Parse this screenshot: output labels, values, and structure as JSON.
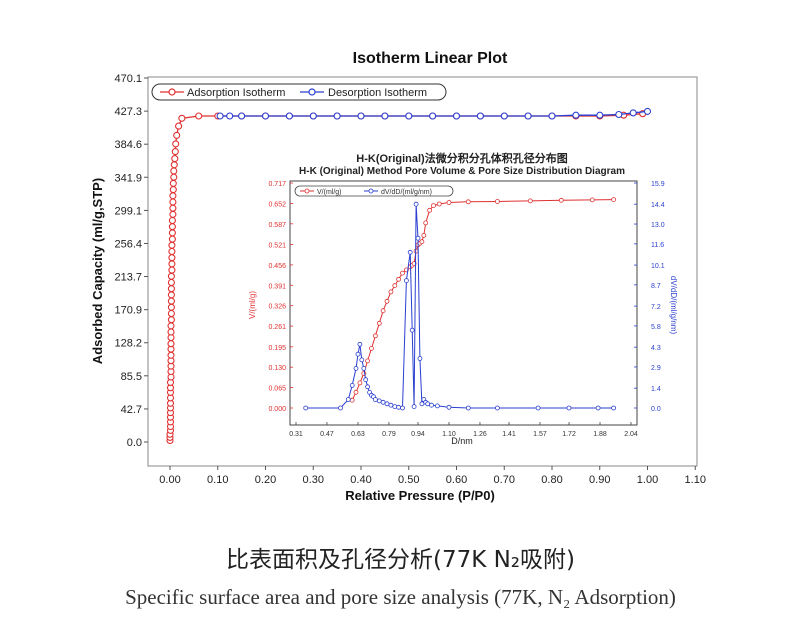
{
  "chart_data": [
    {
      "type": "line",
      "title": "Isotherm Linear Plot",
      "xlabel": "Relative Pressure (P/P0)",
      "ylabel": "Adsorbed Capacity (ml/g,STP)",
      "xlim": [
        -0.05,
        1.1
      ],
      "ylim": [
        0.0,
        470.1
      ],
      "xticks": [
        0.0,
        0.1,
        0.2,
        0.3,
        0.4,
        0.5,
        0.6,
        0.7,
        0.8,
        0.9,
        1.0,
        1.1
      ],
      "xtick_labels": [
        "0.00",
        "0.10",
        "0.20",
        "0.30",
        "0.40",
        "0.50",
        "0.60",
        "0.70",
        "0.80",
        "0.90",
        "1.00",
        "1.10"
      ],
      "yticks": [
        0.0,
        42.7,
        85.5,
        128.2,
        170.9,
        213.7,
        256.4,
        299.1,
        341.9,
        384.6,
        427.3,
        470.1
      ],
      "ytick_labels": [
        "0.0",
        "42.7",
        "85.5",
        "128.2",
        "170.9",
        "213.7",
        "256.4",
        "299.1",
        "341.9",
        "384.6",
        "427.3",
        "470.1"
      ],
      "grid": false,
      "legend_position": "top-left",
      "series": [
        {
          "name": "Adsorption Isotherm",
          "color": "#e03030",
          "x": [
            0.0,
            0.0,
            0.0,
            0.001,
            0.001,
            0.001,
            0.001,
            0.001,
            0.001,
            0.001,
            0.001,
            0.001,
            0.001,
            0.001,
            0.002,
            0.002,
            0.002,
            0.002,
            0.002,
            0.002,
            0.002,
            0.002,
            0.002,
            0.002,
            0.003,
            0.003,
            0.003,
            0.003,
            0.003,
            0.003,
            0.003,
            0.003,
            0.004,
            0.004,
            0.004,
            0.004,
            0.004,
            0.005,
            0.005,
            0.005,
            0.005,
            0.006,
            0.006,
            0.006,
            0.006,
            0.007,
            0.007,
            0.008,
            0.008,
            0.009,
            0.01,
            0.011,
            0.012,
            0.014,
            0.018,
            0.025,
            0.06,
            0.1,
            0.15,
            0.2,
            0.25,
            0.3,
            0.35,
            0.4,
            0.45,
            0.5,
            0.55,
            0.6,
            0.65,
            0.7,
            0.75,
            0.8,
            0.85,
            0.9,
            0.95,
            0.99
          ],
          "y": [
            2,
            6,
            10,
            15,
            20,
            26,
            32,
            38,
            44,
            50,
            57,
            64,
            70,
            77,
            84,
            91,
            98,
            105,
            112,
            120,
            127,
            135,
            142,
            150,
            158,
            166,
            174,
            182,
            190,
            198,
            206,
            214,
            222,
            230,
            238,
            246,
            254,
            262,
            270,
            278,
            286,
            294,
            302,
            310,
            318,
            326,
            334,
            342,
            350,
            358,
            366,
            375,
            385,
            396,
            408,
            418,
            421,
            421,
            421,
            421,
            421,
            421,
            421,
            421,
            421,
            421,
            421,
            421,
            421,
            421,
            421,
            421,
            421,
            421,
            422,
            424
          ]
        },
        {
          "name": "Desorption Isotherm",
          "color": "#2a3fd0",
          "x": [
            1.0,
            0.97,
            0.94,
            0.9,
            0.85,
            0.8,
            0.75,
            0.7,
            0.65,
            0.6,
            0.55,
            0.5,
            0.45,
            0.4,
            0.35,
            0.3,
            0.25,
            0.2,
            0.15,
            0.125,
            0.105
          ],
          "y": [
            427,
            425,
            423,
            422,
            422,
            421,
            421,
            421,
            421,
            421,
            421,
            421,
            421,
            421,
            421,
            421,
            421,
            421,
            421,
            421,
            421
          ]
        }
      ]
    },
    {
      "type": "line",
      "title": "H-K(Original)法微分积分孔体积孔径分布图",
      "subtitle": "H-K (Original) Method Pore Volume & Pore Size Distribution Diagram",
      "xlabel": "D/nm",
      "ylabel": "V/(ml/g)",
      "y2label": "dV/dD/(ml/g/nm)",
      "xlim": [
        0.31,
        2.04
      ],
      "ylim": [
        0.0,
        0.717
      ],
      "y2lim": [
        0.0,
        15.9
      ],
      "xticks": [
        0.31,
        0.47,
        0.63,
        0.79,
        0.94,
        1.1,
        1.26,
        1.41,
        1.57,
        1.72,
        1.88,
        2.04
      ],
      "xtick_labels": [
        "0.31",
        "0.47",
        "0.63",
        "0.79",
        "0.94",
        "1.10",
        "1.26",
        "1.41",
        "1.57",
        "1.72",
        "1.88",
        "2.04"
      ],
      "yticks": [
        0.0,
        0.065,
        0.13,
        0.195,
        0.261,
        0.326,
        0.391,
        0.456,
        0.521,
        0.587,
        0.652,
        0.717
      ],
      "ytick_labels": [
        "0.000",
        "0.065",
        "0.130",
        "0.195",
        "0.261",
        "0.326",
        "0.391",
        "0.456",
        "0.521",
        "0.587",
        "0.652",
        "0.717"
      ],
      "y2ticks": [
        0.0,
        1.4,
        2.9,
        4.3,
        5.8,
        7.2,
        8.7,
        10.1,
        11.6,
        13.0,
        14.4,
        15.9
      ],
      "y2tick_labels": [
        "0.0",
        "1.4",
        "2.9",
        "4.3",
        "5.8",
        "7.2",
        "8.7",
        "10.1",
        "11.6",
        "13.0",
        "14.4",
        "15.9"
      ],
      "grid": false,
      "legend_position": "top-left",
      "series": [
        {
          "name": "V/(ml/g)",
          "axis": "left",
          "color": "#e03030",
          "x": [
            0.6,
            0.62,
            0.64,
            0.66,
            0.68,
            0.7,
            0.72,
            0.74,
            0.76,
            0.78,
            0.8,
            0.82,
            0.84,
            0.86,
            0.88,
            0.9,
            0.91,
            0.92,
            0.93,
            0.94,
            0.95,
            0.96,
            0.97,
            0.98,
            1.0,
            1.02,
            1.05,
            1.1,
            1.2,
            1.35,
            1.52,
            1.68,
            1.84,
            1.95
          ],
          "y": [
            0.025,
            0.05,
            0.08,
            0.11,
            0.15,
            0.19,
            0.23,
            0.27,
            0.31,
            0.34,
            0.37,
            0.39,
            0.41,
            0.43,
            0.44,
            0.45,
            0.455,
            0.46,
            0.5,
            0.52,
            0.525,
            0.53,
            0.55,
            0.59,
            0.63,
            0.645,
            0.65,
            0.655,
            0.657,
            0.658,
            0.66,
            0.662,
            0.663,
            0.664
          ]
        },
        {
          "name": "dV/dD/(ml/g/nm)",
          "axis": "right",
          "color": "#2a3fd0",
          "x": [
            0.36,
            0.54,
            0.58,
            0.6,
            0.62,
            0.63,
            0.64,
            0.65,
            0.66,
            0.67,
            0.68,
            0.69,
            0.7,
            0.71,
            0.72,
            0.74,
            0.76,
            0.78,
            0.8,
            0.82,
            0.84,
            0.86,
            0.88,
            0.9,
            0.91,
            0.92,
            0.93,
            0.94,
            0.95,
            0.96,
            0.97,
            0.98,
            0.99,
            1.01,
            1.04,
            1.1,
            1.2,
            1.35,
            1.56,
            1.72,
            1.87,
            1.95
          ],
          "y": [
            0.0,
            0.0,
            0.6,
            1.6,
            2.8,
            3.8,
            4.5,
            3.4,
            2.8,
            2.0,
            1.5,
            1.1,
            0.9,
            0.8,
            0.6,
            0.5,
            0.4,
            0.3,
            0.2,
            0.1,
            0.05,
            0.0,
            9.0,
            11.0,
            5.5,
            0.1,
            14.4,
            12.0,
            3.5,
            0.3,
            0.6,
            0.4,
            0.3,
            0.2,
            0.15,
            0.05,
            0.0,
            0.0,
            0.0,
            0.0,
            0.0,
            0.0
          ]
        }
      ]
    }
  ],
  "caption": {
    "zh": "比表面积及孔径分析(77K N₂吸附)",
    "en": "Specific surface area and pore size analysis (77K, N₂ Adsorption)"
  }
}
